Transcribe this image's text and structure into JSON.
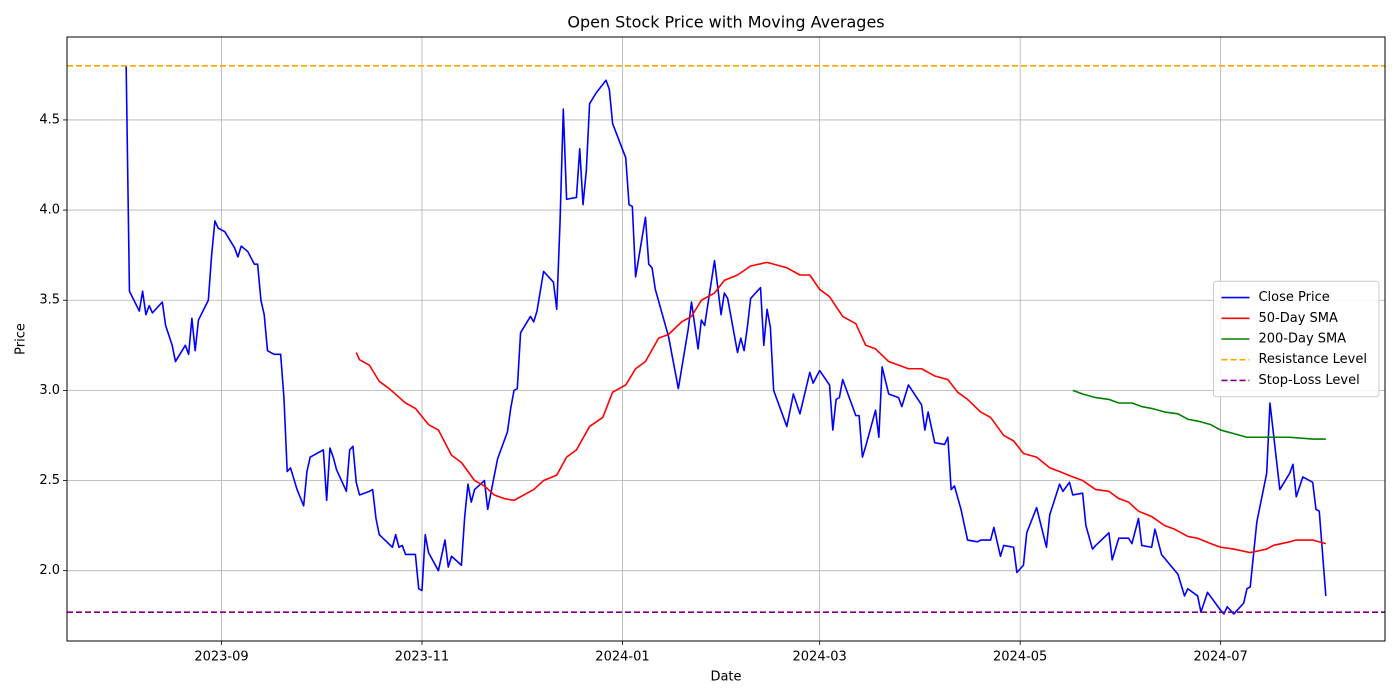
{
  "chart_data": {
    "type": "line",
    "title": "Open Stock Price with Moving Averages",
    "x_label": "Date",
    "y_label": "Price",
    "xlim": [
      "2023-07-16",
      "2024-08-20"
    ],
    "ylim": [
      1.61,
      4.96
    ],
    "xticks": [
      {
        "value": "2023-09-01",
        "label": "2023-09"
      },
      {
        "value": "2023-11-01",
        "label": "2023-11"
      },
      {
        "value": "2024-01-01",
        "label": "2024-01"
      },
      {
        "value": "2024-03-01",
        "label": "2024-03"
      },
      {
        "value": "2024-05-01",
        "label": "2024-05"
      },
      {
        "value": "2024-07-01",
        "label": "2024-07"
      }
    ],
    "yticks": [
      {
        "value": 2,
        "label": "2.0"
      },
      2.5,
      {
        "value": 3,
        "label": "3.0"
      },
      3.5,
      {
        "value": 4,
        "label": "4.0"
      },
      4.5
    ],
    "grid": true,
    "legend": "center right",
    "series": [
      {
        "name": "Close Price",
        "color": "#0000ff",
        "x": [
          "2023-08-03",
          "2023-08-04",
          "2023-08-07",
          "2023-08-08",
          "2023-08-09",
          "2023-08-10",
          "2023-08-11",
          "2023-08-14",
          "2023-08-15",
          "2023-08-17",
          "2023-08-18",
          "2023-08-21",
          "2023-08-22",
          "2023-08-23",
          "2023-08-24",
          "2023-08-25",
          "2023-08-28",
          "2023-08-29",
          "2023-08-30",
          "2023-08-31",
          "2023-09-02",
          "2023-09-05",
          "2023-09-06",
          "2023-09-07",
          "2023-09-09",
          "2023-09-11",
          "2023-09-12",
          "2023-09-13",
          "2023-09-14",
          "2023-09-15",
          "2023-09-17",
          "2023-09-19",
          "2023-09-20",
          "2023-09-21",
          "2023-09-22",
          "2023-09-24",
          "2023-09-26",
          "2023-09-27",
          "2023-09-28",
          "2023-09-29",
          "2023-10-02",
          "2023-10-03",
          "2023-10-04",
          "2023-10-05",
          "2023-10-06",
          "2023-10-09",
          "2023-10-10",
          "2023-10-11",
          "2023-10-12",
          "2023-10-13",
          "2023-10-16",
          "2023-10-17",
          "2023-10-18",
          "2023-10-19",
          "2023-10-23",
          "2023-10-24",
          "2023-10-25",
          "2023-10-26",
          "2023-10-27",
          "2023-10-30",
          "2023-10-31",
          "2023-11-01",
          "2023-11-02",
          "2023-11-03",
          "2023-11-06",
          "2023-11-08",
          "2023-11-09",
          "2023-11-10",
          "2023-11-13",
          "2023-11-14",
          "2023-11-15",
          "2023-11-16",
          "2023-11-17",
          "2023-11-20",
          "2023-11-21",
          "2023-11-24",
          "2023-11-27",
          "2023-11-28",
          "2023-11-29",
          "2023-11-30",
          "2023-12-01",
          "2023-12-04",
          "2023-12-05",
          "2023-12-06",
          "2023-12-08",
          "2023-12-11",
          "2023-12-12",
          "2023-12-13",
          "2023-12-14",
          "2023-12-15",
          "2023-12-18",
          "2023-12-19",
          "2023-12-20",
          "2023-12-21",
          "2023-12-22",
          "2023-12-24",
          "2023-12-27",
          "2023-12-28",
          "2023-12-29",
          "2024-01-02",
          "2024-01-03",
          "2024-01-04",
          "2024-01-05",
          "2024-01-08",
          "2024-01-09",
          "2024-01-10",
          "2024-01-11",
          "2024-01-15",
          "2024-01-18",
          "2024-01-21",
          "2024-01-22",
          "2024-01-24",
          "2024-01-25",
          "2024-01-26",
          "2024-01-29",
          "2024-01-31",
          "2024-02-01",
          "2024-02-02",
          "2024-02-05",
          "2024-02-06",
          "2024-02-07",
          "2024-02-08",
          "2024-02-09",
          "2024-02-12",
          "2024-02-13",
          "2024-02-14",
          "2024-02-15",
          "2024-02-16",
          "2024-02-20",
          "2024-02-22",
          "2024-02-24",
          "2024-02-27",
          "2024-02-28",
          "2024-03-01",
          "2024-03-04",
          "2024-03-05",
          "2024-03-06",
          "2024-03-07",
          "2024-03-08",
          "2024-03-12",
          "2024-03-13",
          "2024-03-14",
          "2024-03-15",
          "2024-03-18",
          "2024-03-19",
          "2024-03-20",
          "2024-03-22",
          "2024-03-25",
          "2024-03-26",
          "2024-03-28",
          "2024-04-01",
          "2024-04-02",
          "2024-04-03",
          "2024-04-05",
          "2024-04-08",
          "2024-04-09",
          "2024-04-10",
          "2024-04-11",
          "2024-04-13",
          "2024-04-15",
          "2024-04-18",
          "2024-04-19",
          "2024-04-22",
          "2024-04-23",
          "2024-04-25",
          "2024-04-26",
          "2024-04-29",
          "2024-04-30",
          "2024-05-02",
          "2024-05-03",
          "2024-05-06",
          "2024-05-09",
          "2024-05-10",
          "2024-05-13",
          "2024-05-14",
          "2024-05-16",
          "2024-05-17",
          "2024-05-20",
          "2024-05-21",
          "2024-05-23",
          "2024-05-24",
          "2024-05-28",
          "2024-05-29",
          "2024-05-31",
          "2024-06-03",
          "2024-06-04",
          "2024-06-06",
          "2024-06-07",
          "2024-06-10",
          "2024-06-11",
          "2024-06-13",
          "2024-06-18",
          "2024-06-20",
          "2024-06-21",
          "2024-06-24",
          "2024-06-25",
          "2024-06-27",
          "2024-07-01",
          "2024-07-02",
          "2024-07-03",
          "2024-07-05",
          "2024-07-08",
          "2024-07-09",
          "2024-07-10",
          "2024-07-12",
          "2024-07-15",
          "2024-07-16",
          "2024-07-19",
          "2024-07-22",
          "2024-07-23",
          "2024-07-24",
          "2024-07-26",
          "2024-07-29",
          "2024-07-30",
          "2024-07-31",
          "2024-08-02"
        ],
        "values": [
          4.8,
          3.55,
          3.44,
          3.55,
          3.42,
          3.47,
          3.43,
          3.49,
          3.36,
          3.25,
          3.16,
          3.25,
          3.2,
          3.4,
          3.22,
          3.39,
          3.5,
          3.75,
          3.94,
          3.9,
          3.88,
          3.79,
          3.74,
          3.8,
          3.77,
          3.7,
          3.7,
          3.5,
          3.42,
          3.22,
          3.2,
          3.2,
          2.96,
          2.55,
          2.57,
          2.45,
          2.36,
          2.55,
          2.63,
          2.64,
          2.67,
          2.39,
          2.68,
          2.63,
          2.56,
          2.44,
          2.67,
          2.69,
          2.49,
          2.42,
          2.44,
          2.45,
          2.29,
          2.2,
          2.13,
          2.2,
          2.13,
          2.14,
          2.09,
          2.09,
          1.9,
          1.89,
          2.2,
          2.1,
          2.0,
          2.17,
          2.02,
          2.08,
          2.03,
          2.3,
          2.48,
          2.38,
          2.45,
          2.5,
          2.34,
          2.62,
          2.77,
          2.9,
          3.0,
          3.01,
          3.32,
          3.41,
          3.38,
          3.44,
          3.66,
          3.6,
          3.45,
          3.93,
          4.56,
          4.06,
          4.07,
          4.34,
          4.03,
          4.22,
          4.59,
          4.65,
          4.72,
          4.67,
          4.48,
          4.29,
          4.03,
          4.02,
          3.63,
          3.96,
          3.7,
          3.68,
          3.56,
          3.3,
          3.01,
          3.34,
          3.49,
          3.23,
          3.39,
          3.36,
          3.72,
          3.42,
          3.54,
          3.51,
          3.21,
          3.29,
          3.22,
          3.35,
          3.51,
          3.57,
          3.25,
          3.45,
          3.35,
          3.0,
          2.8,
          2.98,
          2.87,
          3.1,
          3.04,
          3.11,
          3.03,
          2.78,
          2.95,
          2.96,
          3.06,
          2.86,
          2.86,
          2.63,
          2.69,
          2.89,
          2.74,
          3.13,
          2.98,
          2.96,
          2.91,
          3.03,
          2.92,
          2.78,
          2.88,
          2.71,
          2.7,
          2.74,
          2.45,
          2.47,
          2.34,
          2.17,
          2.16,
          2.17,
          2.17,
          2.24,
          2.08,
          2.14,
          2.13,
          1.99,
          2.03,
          2.21,
          2.35,
          2.13,
          2.31,
          2.48,
          2.44,
          2.49,
          2.42,
          2.43,
          2.25,
          2.12,
          2.14,
          2.21,
          2.06,
          2.18,
          2.18,
          2.15,
          2.29,
          2.14,
          2.13,
          2.23,
          2.09,
          1.98,
          1.86,
          1.9,
          1.86,
          1.77,
          1.88,
          1.78,
          1.76,
          1.8,
          1.76,
          1.82,
          1.9,
          1.91,
          2.27,
          2.54,
          2.93,
          2.45,
          2.54,
          2.59,
          2.41,
          2.52,
          2.49,
          2.34,
          2.33,
          1.86
        ]
      },
      {
        "name": "50-Day SMA",
        "color": "#ff0000",
        "x": [
          "2023-10-12",
          "2023-10-13",
          "2023-10-16",
          "2023-10-19",
          "2023-10-22",
          "2023-10-27",
          "2023-10-30",
          "2023-11-03",
          "2023-11-06",
          "2023-11-10",
          "2023-11-13",
          "2023-11-17",
          "2023-11-20",
          "2023-11-23",
          "2023-11-26",
          "2023-11-29",
          "2023-12-02",
          "2023-12-05",
          "2023-12-08",
          "2023-12-12",
          "2023-12-15",
          "2023-12-18",
          "2023-12-22",
          "2023-12-26",
          "2023-12-29",
          "2024-01-02",
          "2024-01-05",
          "2024-01-08",
          "2024-01-12",
          "2024-01-15",
          "2024-01-19",
          "2024-01-22",
          "2024-01-25",
          "2024-01-29",
          "2024-02-01",
          "2024-02-05",
          "2024-02-09",
          "2024-02-14",
          "2024-02-20",
          "2024-02-24",
          "2024-02-27",
          "2024-03-01",
          "2024-03-04",
          "2024-03-08",
          "2024-03-12",
          "2024-03-15",
          "2024-03-18",
          "2024-03-22",
          "2024-03-25",
          "2024-03-28",
          "2024-04-01",
          "2024-04-05",
          "2024-04-09",
          "2024-04-12",
          "2024-04-15",
          "2024-04-19",
          "2024-04-22",
          "2024-04-26",
          "2024-04-29",
          "2024-05-02",
          "2024-05-06",
          "2024-05-10",
          "2024-05-13",
          "2024-05-17",
          "2024-05-20",
          "2024-05-24",
          "2024-05-28",
          "2024-05-31",
          "2024-06-03",
          "2024-06-06",
          "2024-06-10",
          "2024-06-14",
          "2024-06-17",
          "2024-06-21",
          "2024-06-24",
          "2024-06-28",
          "2024-07-01",
          "2024-07-05",
          "2024-07-10",
          "2024-07-15",
          "2024-07-17",
          "2024-07-22",
          "2024-07-24",
          "2024-07-29",
          "2024-07-31",
          "2024-08-02"
        ],
        "values": [
          3.21,
          3.17,
          3.14,
          3.05,
          3.01,
          2.93,
          2.9,
          2.81,
          2.78,
          2.64,
          2.6,
          2.5,
          2.47,
          2.42,
          2.4,
          2.39,
          2.42,
          2.45,
          2.5,
          2.53,
          2.63,
          2.67,
          2.8,
          2.85,
          2.99,
          3.03,
          3.12,
          3.16,
          3.29,
          3.31,
          3.38,
          3.41,
          3.5,
          3.54,
          3.61,
          3.64,
          3.69,
          3.71,
          3.68,
          3.64,
          3.64,
          3.56,
          3.52,
          3.41,
          3.37,
          3.25,
          3.23,
          3.16,
          3.14,
          3.12,
          3.12,
          3.08,
          3.06,
          2.99,
          2.95,
          2.88,
          2.85,
          2.75,
          2.72,
          2.65,
          2.63,
          2.57,
          2.55,
          2.52,
          2.5,
          2.45,
          2.44,
          2.4,
          2.38,
          2.33,
          2.3,
          2.25,
          2.23,
          2.19,
          2.18,
          2.15,
          2.13,
          2.12,
          2.1,
          2.12,
          2.14,
          2.16,
          2.17,
          2.17,
          2.16,
          2.15
        ]
      },
      {
        "name": "200-Day SMA",
        "color": "#008000",
        "x": [
          "2024-05-17",
          "2024-05-20",
          "2024-05-24",
          "2024-05-28",
          "2024-05-31",
          "2024-06-04",
          "2024-06-07",
          "2024-06-10",
          "2024-06-14",
          "2024-06-18",
          "2024-06-21",
          "2024-06-24",
          "2024-06-28",
          "2024-07-01",
          "2024-07-05",
          "2024-07-09",
          "2024-07-12",
          "2024-07-15",
          "2024-07-22",
          "2024-07-29",
          "2024-08-02"
        ],
        "values": [
          3.0,
          2.98,
          2.96,
          2.95,
          2.93,
          2.93,
          2.91,
          2.9,
          2.88,
          2.87,
          2.84,
          2.83,
          2.81,
          2.78,
          2.76,
          2.74,
          2.74,
          2.74,
          2.74,
          2.73,
          2.73
        ]
      }
    ],
    "hlines": [
      {
        "name": "Resistance Level",
        "color": "#ffa500",
        "value": 4.8
      },
      {
        "name": "Stop-Loss Level",
        "color": "#800080",
        "value": 1.77
      }
    ]
  }
}
